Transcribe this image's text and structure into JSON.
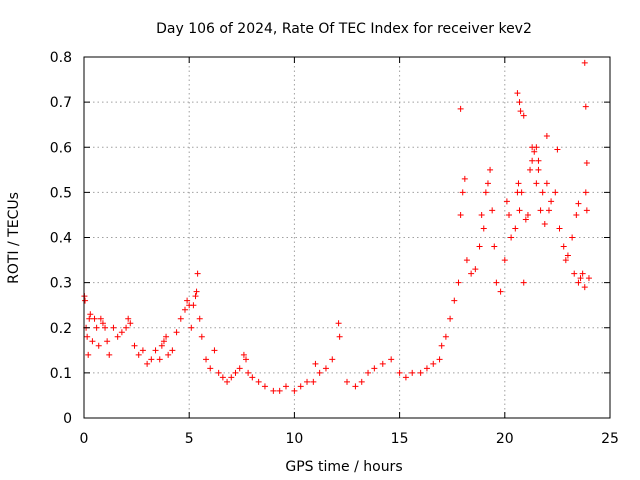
{
  "chart_data": {
    "type": "scatter",
    "title": "Day 106 of 2024, Rate Of TEC Index for receiver kev2",
    "xlabel": "GPS time / hours",
    "ylabel": "ROTI / TECUs",
    "xlim": [
      0,
      25
    ],
    "ylim": [
      0,
      0.8
    ],
    "xticks": [
      0,
      5,
      10,
      15,
      20,
      25
    ],
    "yticks": [
      0,
      0.1,
      0.2,
      0.3,
      0.4,
      0.5,
      0.6,
      0.7,
      0.8
    ],
    "xtick_labels": [
      "0",
      "5",
      "10",
      "15",
      "20",
      "25"
    ],
    "ytick_labels": [
      "0",
      "0.1",
      "0.2",
      "0.3",
      "0.4",
      "0.5",
      "0.6",
      "0.7",
      "0.8"
    ],
    "grid": true,
    "marker": "+",
    "color": "#ff0000",
    "series": [
      {
        "name": "ROTI",
        "points": [
          [
            0.02,
            0.27
          ],
          [
            0.05,
            0.26
          ],
          [
            0.1,
            0.2
          ],
          [
            0.15,
            0.18
          ],
          [
            0.2,
            0.14
          ],
          [
            0.25,
            0.22
          ],
          [
            0.3,
            0.23
          ],
          [
            0.4,
            0.17
          ],
          [
            0.5,
            0.22
          ],
          [
            0.6,
            0.2
          ],
          [
            0.7,
            0.16
          ],
          [
            0.8,
            0.22
          ],
          [
            0.9,
            0.21
          ],
          [
            1.0,
            0.2
          ],
          [
            1.1,
            0.17
          ],
          [
            1.2,
            0.14
          ],
          [
            1.4,
            0.2
          ],
          [
            1.6,
            0.18
          ],
          [
            1.8,
            0.19
          ],
          [
            2.0,
            0.2
          ],
          [
            2.1,
            0.22
          ],
          [
            2.2,
            0.21
          ],
          [
            2.4,
            0.16
          ],
          [
            2.6,
            0.14
          ],
          [
            2.8,
            0.15
          ],
          [
            3.0,
            0.12
          ],
          [
            3.2,
            0.13
          ],
          [
            3.4,
            0.15
          ],
          [
            3.6,
            0.13
          ],
          [
            3.7,
            0.16
          ],
          [
            3.8,
            0.17
          ],
          [
            3.9,
            0.18
          ],
          [
            4.0,
            0.14
          ],
          [
            4.2,
            0.15
          ],
          [
            4.4,
            0.19
          ],
          [
            4.6,
            0.22
          ],
          [
            4.8,
            0.24
          ],
          [
            4.9,
            0.26
          ],
          [
            5.0,
            0.25
          ],
          [
            5.1,
            0.2
          ],
          [
            5.2,
            0.25
          ],
          [
            5.3,
            0.27
          ],
          [
            5.35,
            0.28
          ],
          [
            5.4,
            0.32
          ],
          [
            5.5,
            0.22
          ],
          [
            5.6,
            0.18
          ],
          [
            5.8,
            0.13
          ],
          [
            6.0,
            0.11
          ],
          [
            6.2,
            0.15
          ],
          [
            6.4,
            0.1
          ],
          [
            6.6,
            0.09
          ],
          [
            6.8,
            0.08
          ],
          [
            7.0,
            0.09
          ],
          [
            7.2,
            0.1
          ],
          [
            7.4,
            0.11
          ],
          [
            7.6,
            0.14
          ],
          [
            7.7,
            0.13
          ],
          [
            7.8,
            0.1
          ],
          [
            8.0,
            0.09
          ],
          [
            8.3,
            0.08
          ],
          [
            8.6,
            0.07
          ],
          [
            9.0,
            0.06
          ],
          [
            9.3,
            0.06
          ],
          [
            9.6,
            0.07
          ],
          [
            10.0,
            0.06
          ],
          [
            10.3,
            0.07
          ],
          [
            10.6,
            0.08
          ],
          [
            10.9,
            0.08
          ],
          [
            11.0,
            0.12
          ],
          [
            11.2,
            0.1
          ],
          [
            11.5,
            0.11
          ],
          [
            11.8,
            0.13
          ],
          [
            12.1,
            0.21
          ],
          [
            12.15,
            0.18
          ],
          [
            12.5,
            0.08
          ],
          [
            12.9,
            0.07
          ],
          [
            13.2,
            0.08
          ],
          [
            13.5,
            0.1
          ],
          [
            13.8,
            0.11
          ],
          [
            14.2,
            0.12
          ],
          [
            14.6,
            0.13
          ],
          [
            15.0,
            0.1
          ],
          [
            15.3,
            0.09
          ],
          [
            15.6,
            0.1
          ],
          [
            16.0,
            0.1
          ],
          [
            16.3,
            0.11
          ],
          [
            16.6,
            0.12
          ],
          [
            16.9,
            0.13
          ],
          [
            17.0,
            0.16
          ],
          [
            17.2,
            0.18
          ],
          [
            17.4,
            0.22
          ],
          [
            17.6,
            0.26
          ],
          [
            17.8,
            0.3
          ],
          [
            17.9,
            0.45
          ],
          [
            18.0,
            0.5
          ],
          [
            18.1,
            0.53
          ],
          [
            18.2,
            0.35
          ],
          [
            18.4,
            0.32
          ],
          [
            18.6,
            0.33
          ],
          [
            18.8,
            0.38
          ],
          [
            18.9,
            0.45
          ],
          [
            19.0,
            0.42
          ],
          [
            19.1,
            0.5
          ],
          [
            19.2,
            0.52
          ],
          [
            19.3,
            0.55
          ],
          [
            19.4,
            0.46
          ],
          [
            19.5,
            0.38
          ],
          [
            19.6,
            0.3
          ],
          [
            19.8,
            0.28
          ],
          [
            20.0,
            0.35
          ],
          [
            20.1,
            0.48
          ],
          [
            20.2,
            0.45
          ],
          [
            20.3,
            0.4
          ],
          [
            20.5,
            0.42
          ],
          [
            20.6,
            0.5
          ],
          [
            20.65,
            0.52
          ],
          [
            20.7,
            0.46
          ],
          [
            20.8,
            0.5
          ],
          [
            20.9,
            0.3
          ],
          [
            21.0,
            0.44
          ],
          [
            21.1,
            0.45
          ],
          [
            21.2,
            0.55
          ],
          [
            21.3,
            0.57
          ],
          [
            21.4,
            0.59
          ],
          [
            21.5,
            0.52
          ],
          [
            21.6,
            0.55
          ],
          [
            21.7,
            0.46
          ],
          [
            21.8,
            0.5
          ],
          [
            21.9,
            0.43
          ],
          [
            22.0,
            0.52
          ],
          [
            22.1,
            0.46
          ],
          [
            22.2,
            0.48
          ],
          [
            22.4,
            0.5
          ],
          [
            22.6,
            0.42
          ],
          [
            22.8,
            0.38
          ],
          [
            22.9,
            0.35
          ],
          [
            23.0,
            0.36
          ],
          [
            23.2,
            0.4
          ],
          [
            23.3,
            0.32
          ],
          [
            23.4,
            0.45
          ],
          [
            23.5,
            0.3
          ],
          [
            23.6,
            0.31
          ],
          [
            23.7,
            0.32
          ],
          [
            23.8,
            0.29
          ],
          [
            23.85,
            0.5
          ],
          [
            23.9,
            0.46
          ],
          [
            24.0,
            0.31
          ],
          [
            17.9,
            0.685
          ],
          [
            20.6,
            0.72
          ],
          [
            20.7,
            0.7
          ],
          [
            20.75,
            0.68
          ],
          [
            20.9,
            0.67
          ],
          [
            21.3,
            0.6
          ],
          [
            21.6,
            0.57
          ],
          [
            22.0,
            0.625
          ],
          [
            23.8,
            0.787
          ],
          [
            23.85,
            0.69
          ],
          [
            23.9,
            0.565
          ],
          [
            22.5,
            0.595
          ],
          [
            21.5,
            0.6
          ],
          [
            23.5,
            0.475
          ]
        ]
      }
    ]
  }
}
